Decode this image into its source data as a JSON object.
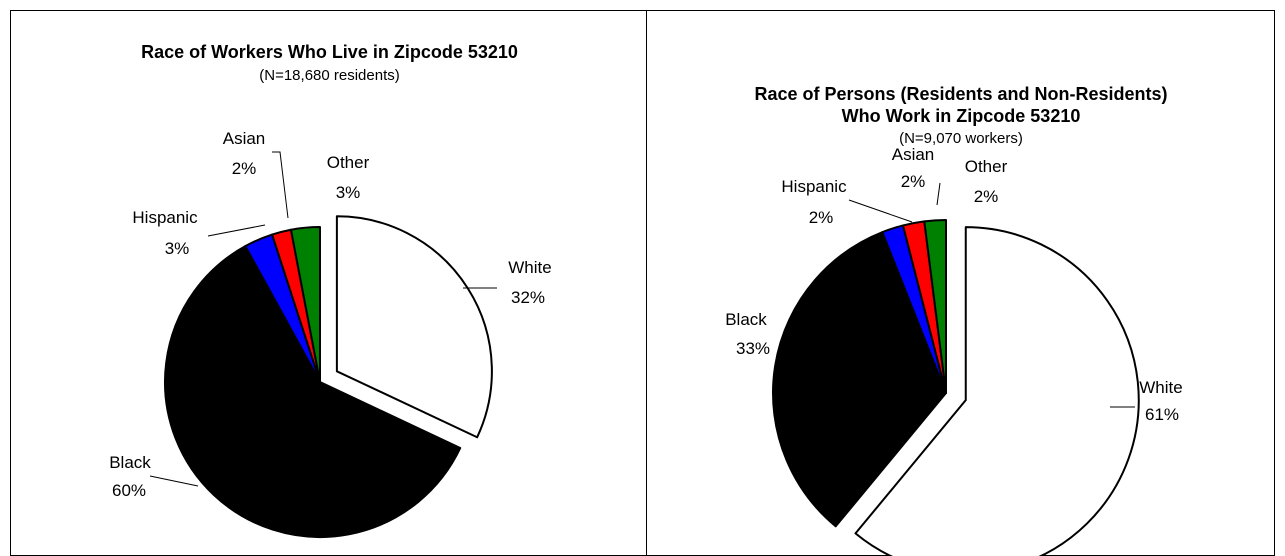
{
  "chart_data": [
    {
      "type": "pie",
      "title": "Race of Workers Who Live in Zipcode 53210",
      "subtitle": "(N=18,680 residents)",
      "categories": [
        "White",
        "Black",
        "Hispanic",
        "Asian",
        "Other"
      ],
      "values": [
        32,
        60,
        3,
        2,
        3
      ],
      "value_labels": [
        "32%",
        "60%",
        "3%",
        "2%",
        "3%"
      ],
      "exploded": [
        "White"
      ],
      "colors": [
        "#ffffff",
        "#000000",
        "#0000ff",
        "#ff0000",
        "#008000"
      ]
    },
    {
      "type": "pie",
      "title_lines": [
        "Race of Persons (Residents and Non-Residents)",
        "Who Work in Zipcode 53210"
      ],
      "subtitle": "(N=9,070 workers)",
      "categories": [
        "White",
        "Black",
        "Hispanic",
        "Asian",
        "Other"
      ],
      "values": [
        61,
        33,
        2,
        2,
        2
      ],
      "value_labels": [
        "61%",
        "33%",
        "2%",
        "2%",
        "2%"
      ],
      "exploded": [
        "White"
      ],
      "colors": [
        "#ffffff",
        "#000000",
        "#0000ff",
        "#ff0000",
        "#008000"
      ]
    }
  ]
}
